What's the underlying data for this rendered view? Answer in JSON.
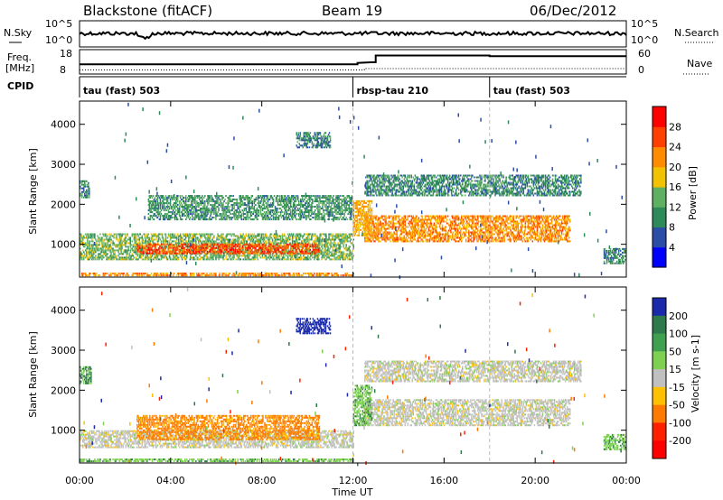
{
  "header": {
    "station": "Blackstone (fitACF)",
    "beam": "Beam 19",
    "date": "06/Dec/2012"
  },
  "aux_panels": {
    "nsky_label": "N.Sky",
    "nsearch_label": "N.Search",
    "nsky_ticks": [
      "10^5",
      "10^0"
    ],
    "nsearch_ticks": [
      "10^5",
      "10^0"
    ],
    "freq_label_1": "Freq.",
    "freq_label_2": "[MHz]",
    "freq_ticks": [
      "18",
      "8"
    ],
    "nave_label": "Nave",
    "nave_ticks": [
      "60",
      "0"
    ],
    "cpid_label": "CPID",
    "cpid_segments": [
      {
        "name": "tau (fast) 503",
        "start_hour": 0,
        "end_hour": 12
      },
      {
        "name": "rbsp-tau 210",
        "start_hour": 12,
        "end_hour": 18
      },
      {
        "name": "tau (fast) 503",
        "start_hour": 18,
        "end_hour": 24
      }
    ]
  },
  "time_axis": {
    "label": "Time UT",
    "ticks": [
      "00:00",
      "04:00",
      "08:00",
      "12:00",
      "16:00",
      "20:00",
      "00:00"
    ],
    "tick_hours": [
      0,
      4,
      8,
      12,
      16,
      20,
      24
    ],
    "range_hours": [
      0,
      24
    ]
  },
  "chart_data": [
    {
      "type": "heatmap",
      "quantity": "Power",
      "ylabel": "Slant Range [km]",
      "y_ticks": [
        "1000",
        "2000",
        "3000",
        "4000"
      ],
      "y_tick_values": [
        1000,
        2000,
        3000,
        4000
      ],
      "ylim": [
        180,
        4580
      ],
      "colorbar_label": "Power [dB]",
      "colorbar_ticks": [
        "4",
        "8",
        "12",
        "16",
        "20",
        "24",
        "28"
      ],
      "colorbar_values": [
        4,
        8,
        12,
        16,
        20,
        24,
        28
      ],
      "colorbar_range": [
        0,
        32
      ],
      "colorscale": [
        "#0000ff",
        "#2a4da8",
        "#2f8a5a",
        "#5fb060",
        "#f2c200",
        "#ff8c00",
        "#ff4000",
        "#ff0000"
      ],
      "regions": [
        {
          "t": [
            0.0,
            0.4
          ],
          "r": [
            2150,
            2600
          ],
          "value": 10
        },
        {
          "t": [
            0.0,
            12.0
          ],
          "r": [
            600,
            1250
          ],
          "value": 14
        },
        {
          "t": [
            2.5,
            10.5
          ],
          "r": [
            750,
            1000
          ],
          "value": 26
        },
        {
          "t": [
            0.0,
            12.0
          ],
          "r": [
            200,
            260
          ],
          "value": 22
        },
        {
          "t": [
            9.5,
            11.0
          ],
          "r": [
            3400,
            3800
          ],
          "value": 9
        },
        {
          "t": [
            3.0,
            12.0
          ],
          "r": [
            1600,
            2200
          ],
          "value": 11
        },
        {
          "t": [
            12.5,
            21.5
          ],
          "r": [
            1050,
            1700
          ],
          "value": 22
        },
        {
          "t": [
            12.5,
            22.0
          ],
          "r": [
            2200,
            2700
          ],
          "value": 10
        },
        {
          "t": [
            12.0,
            12.8
          ],
          "r": [
            1200,
            2100
          ],
          "value": 20
        },
        {
          "t": [
            23.0,
            24.0
          ],
          "r": [
            500,
            900
          ],
          "value": 10
        }
      ]
    },
    {
      "type": "heatmap",
      "quantity": "Velocity",
      "ylabel": "Slant Range [km]",
      "y_ticks": [
        "1000",
        "2000",
        "3000",
        "4000"
      ],
      "y_tick_values": [
        1000,
        2000,
        3000,
        4000
      ],
      "ylim": [
        180,
        4580
      ],
      "colorbar_label": "Velocity [m s-1]",
      "colorbar_ticks": [
        "200",
        "100",
        "50",
        "15",
        "-15",
        "-50",
        "-100",
        "-200"
      ],
      "colorbar_values": [
        200,
        100,
        50,
        15,
        -15,
        -50,
        -100,
        -200
      ],
      "colorscale": [
        "#1a2aaa",
        "#2f7a4a",
        "#3fa050",
        "#7ed050",
        "#c0c0c0",
        "#ffc000",
        "#ff7a00",
        "#ff2000",
        "#ff0000"
      ],
      "regions": [
        {
          "t": [
            0.0,
            0.5
          ],
          "r": [
            2150,
            2600
          ],
          "value": 60
        },
        {
          "t": [
            0.0,
            12.0
          ],
          "r": [
            550,
            1000
          ],
          "value": 0
        },
        {
          "t": [
            2.5,
            10.5
          ],
          "r": [
            750,
            1350
          ],
          "value": -60
        },
        {
          "t": [
            0.0,
            12.0
          ],
          "r": [
            200,
            260
          ],
          "value": 40
        },
        {
          "t": [
            9.5,
            11.0
          ],
          "r": [
            3400,
            3800
          ],
          "value": 150
        },
        {
          "t": [
            12.5,
            21.5
          ],
          "r": [
            1100,
            1750
          ],
          "value": 0
        },
        {
          "t": [
            12.5,
            22.0
          ],
          "r": [
            2200,
            2700
          ],
          "value": 0
        },
        {
          "t": [
            12.0,
            12.8
          ],
          "r": [
            1100,
            2100
          ],
          "value": 40
        },
        {
          "t": [
            23.0,
            24.0
          ],
          "r": [
            500,
            900
          ],
          "value": 40
        }
      ]
    }
  ]
}
